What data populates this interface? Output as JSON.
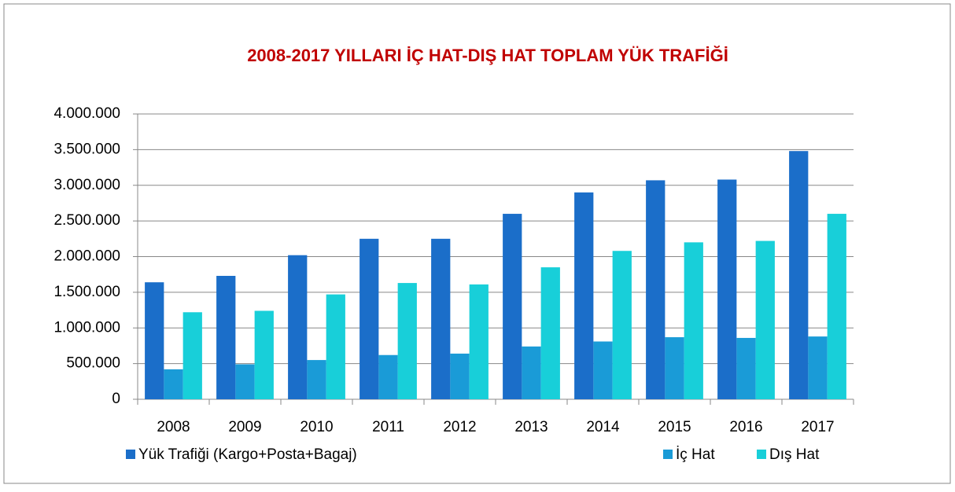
{
  "chart_data": {
    "type": "bar",
    "title": "2008-2017 YILLARI İÇ HAT-DIŞ HAT TOPLAM YÜK TRAFİĞİ",
    "categories": [
      "2008",
      "2009",
      "2010",
      "2011",
      "2012",
      "2013",
      "2014",
      "2015",
      "2016",
      "2017"
    ],
    "series": [
      {
        "name": "Yük Trafiği (Kargo+Posta+Bagaj)",
        "color": "#1b6ec9",
        "values": [
          1640000,
          1730000,
          2020000,
          2250000,
          2250000,
          2600000,
          2900000,
          3070000,
          3080000,
          3480000
        ]
      },
      {
        "name": "İç Hat",
        "color": "#1a9bd7",
        "values": [
          420000,
          490000,
          550000,
          620000,
          640000,
          740000,
          810000,
          870000,
          860000,
          880000
        ]
      },
      {
        "name": "Dış Hat",
        "color": "#18cfd9",
        "values": [
          1220000,
          1240000,
          1470000,
          1630000,
          1610000,
          1850000,
          2080000,
          2200000,
          2220000,
          2600000
        ]
      }
    ],
    "ylim": [
      0,
      4000000
    ],
    "yticks": [
      0,
      {
        "value": 500000,
        "label": "500.000"
      },
      {
        "value": 1000000,
        "label": "1.000.000"
      },
      {
        "value": 1500000,
        "label": "1.500.000"
      },
      {
        "value": 2000000,
        "label": "2.000.000"
      },
      {
        "value": 2500000,
        "label": "2.500.000"
      },
      {
        "value": 3000000,
        "label": "3.000.000"
      },
      {
        "value": 3500000,
        "label": "3.500.000"
      },
      {
        "value": 4000000,
        "label": "4.000.000"
      }
    ],
    "grid": true,
    "legend": "bottom"
  }
}
